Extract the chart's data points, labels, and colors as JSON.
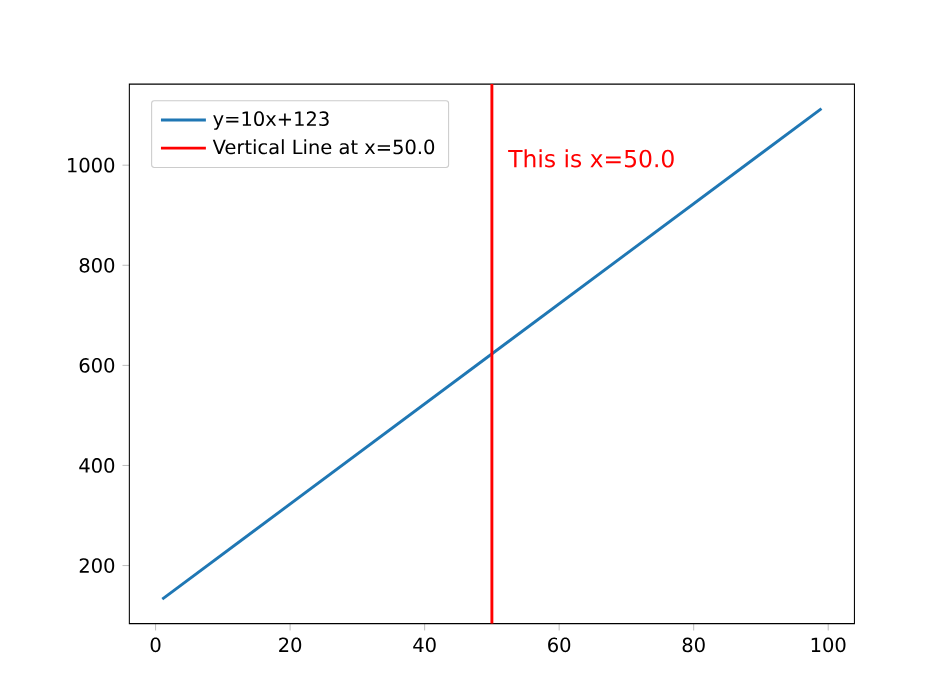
{
  "chart_data": {
    "type": "line",
    "x": [
      1,
      99
    ],
    "series": [
      {
        "name": "y=10x+123",
        "color": "#1f77b4",
        "values": [
          133,
          1113
        ]
      }
    ],
    "ref_lines": [
      {
        "axis": "x",
        "value": 50,
        "label": "Vertical Line at x=50.0",
        "color": "#ff0000",
        "line_style": "solid"
      }
    ],
    "annotations": [
      "This is x=50.0"
    ],
    "xlim": [
      -3.9,
      103.9
    ],
    "ylim": [
      84,
      1162
    ],
    "xticks": [
      0,
      20,
      40,
      60,
      80,
      100
    ],
    "yticks": [
      200,
      400,
      600,
      800,
      1000
    ],
    "grid": false,
    "legend": "top left",
    "marker": "none",
    "line_style": "solid"
  }
}
